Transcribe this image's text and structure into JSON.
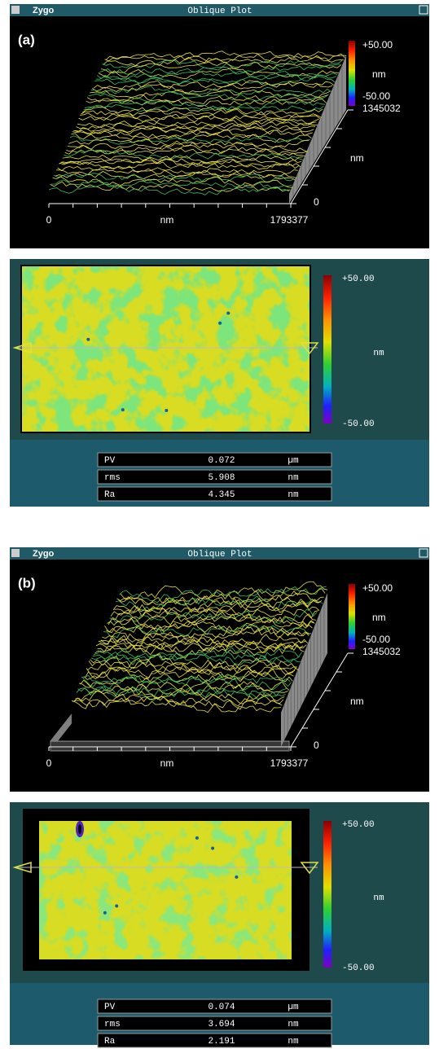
{
  "panels": [
    {
      "label": "(a)",
      "window": {
        "logo": "Zygo",
        "title": "Oblique Plot"
      },
      "oblique": {
        "scale": {
          "max": "+50.00",
          "unit": "nm",
          "min": "-50.00"
        },
        "y_axis": {
          "max": "1345032",
          "unit": "nm",
          "min": "0"
        },
        "x_axis": {
          "min": "0",
          "unit": "nm",
          "max": "1793377"
        }
      },
      "map": {
        "scale": {
          "max": "+50.00",
          "unit": "nm",
          "min": "-50.00"
        }
      },
      "stats": [
        [
          "PV",
          "0.072",
          "µm"
        ],
        [
          "rms",
          "5.908",
          "nm"
        ],
        [
          "Ra",
          "4.345",
          "nm"
        ]
      ]
    },
    {
      "label": "(b)",
      "window": {
        "logo": "Zygo",
        "title": "Oblique Plot"
      },
      "oblique": {
        "scale": {
          "max": "+50.00",
          "unit": "nm",
          "min": "-50.00"
        },
        "y_axis": {
          "max": "1345032",
          "unit": "nm",
          "min": "0"
        },
        "x_axis": {
          "min": "0",
          "unit": "nm",
          "max": "1793377"
        }
      },
      "map": {
        "scale": {
          "max": "+50.00",
          "unit": "nm",
          "min": "-50.00"
        }
      },
      "stats": [
        [
          "PV",
          "0.074",
          "µm"
        ],
        [
          "rms",
          "3.694",
          "nm"
        ],
        [
          "Ra",
          "2.191",
          "nm"
        ]
      ]
    }
  ]
}
